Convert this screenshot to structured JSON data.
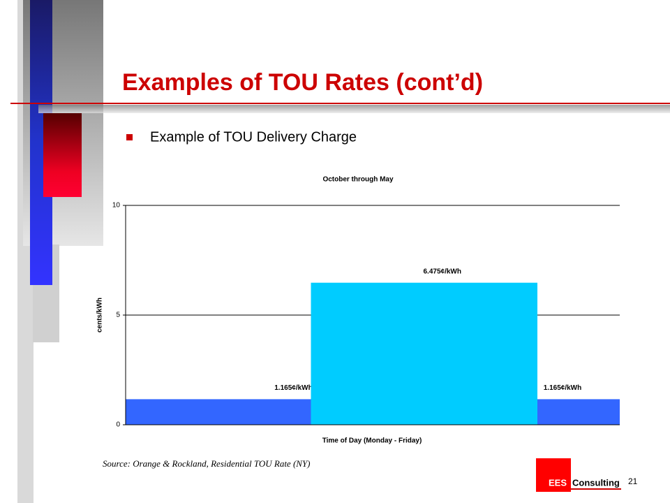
{
  "slide": {
    "title": "Examples of TOU Rates (cont’d)",
    "bullet": "Example of TOU Delivery Charge",
    "source": "Source: Orange & Rockland, Residential TOU Rate (NY)",
    "logo": {
      "mark": "EES",
      "name": "Consulting"
    },
    "page_number": "21"
  },
  "chart_data": {
    "type": "histogram",
    "title": "October through May",
    "x_label": "Time of Day (Monday - Friday)",
    "y_label": "cents/kWh",
    "bins": [
      0,
      9,
      20,
      24
    ],
    "values": [
      1.165,
      6.475,
      1.165
    ],
    "value_labels": [
      "1.165¢/kWh",
      "6.475¢/kWh",
      "1.165¢/kWh"
    ],
    "colors": [
      "#3366ff",
      "#00ccff",
      "#3366ff"
    ],
    "xlim": [
      0,
      24
    ],
    "ylim": [
      0,
      10
    ],
    "yticks": [
      0,
      5,
      10
    ],
    "grid": true
  }
}
